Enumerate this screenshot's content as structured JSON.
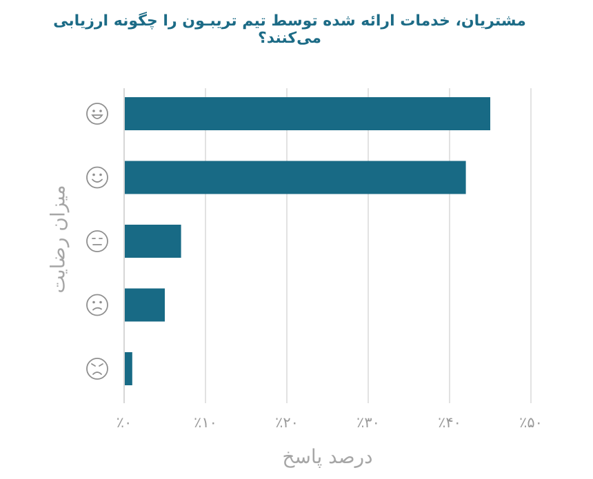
{
  "chart_data": {
    "type": "bar",
    "orientation": "horizontal",
    "title": "مشتریان، خدمات ارائه شده توسط تیم تریبـون را چگونه ارزیابی می‌کنند؟",
    "xlabel": "درصد پاسخ",
    "ylabel": "میزان رضایت",
    "categories": [
      "very-satisfied-face",
      "satisfied-face",
      "neutral-face",
      "dissatisfied-face",
      "very-dissatisfied-face"
    ],
    "values": [
      45,
      42,
      7,
      5,
      1
    ],
    "xlim": [
      0,
      50
    ],
    "xticks": [
      0,
      10,
      20,
      30,
      40,
      50
    ],
    "xtick_labels": [
      "٪۰",
      "٪۱۰",
      "٪۲۰",
      "٪۳۰",
      "٪۴۰",
      "٪۵۰"
    ],
    "grid": "vertical",
    "bar_color": "#186a85",
    "title_color": "#1c6b86",
    "axis_text_color": "#a6a6a6"
  }
}
